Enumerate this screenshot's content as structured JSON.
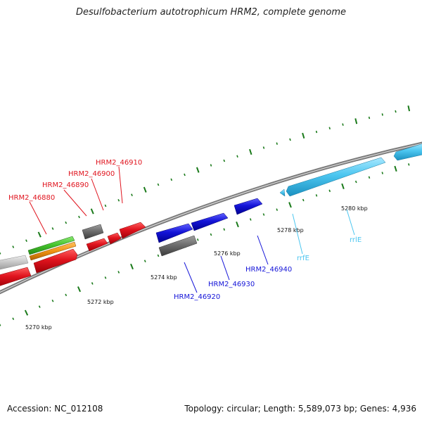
{
  "title": "Desulfobacterium autotrophicum HRM2, complete genome",
  "accession": "Accession: NC_012108",
  "summary": "Topology: circular; Length: 5,589,073 bp; Genes: 4,936",
  "colors": {
    "backbone": "#8a8a8a",
    "tick": "#1a7a1a",
    "red": "#e0141e",
    "blue": "#1414d8",
    "cyan": "#4cc6f0",
    "gray": "#6e6e6e",
    "lightgray": "#c8c8c8",
    "green": "#42c02a",
    "orange": "#f09414"
  },
  "ticks": [
    "5270 kbp",
    "5272 kbp",
    "5274 kbp",
    "5276 kbp",
    "5278 kbp",
    "5280 kbp"
  ],
  "labels": {
    "red": [
      "HRM2_46880",
      "HRM2_46890",
      "HRM2_46900",
      "HRM2_46910"
    ],
    "blue": [
      "HRM2_46920",
      "HRM2_46930",
      "HRM2_46940"
    ],
    "cyan": [
      "rrfE",
      "rrlE"
    ]
  }
}
